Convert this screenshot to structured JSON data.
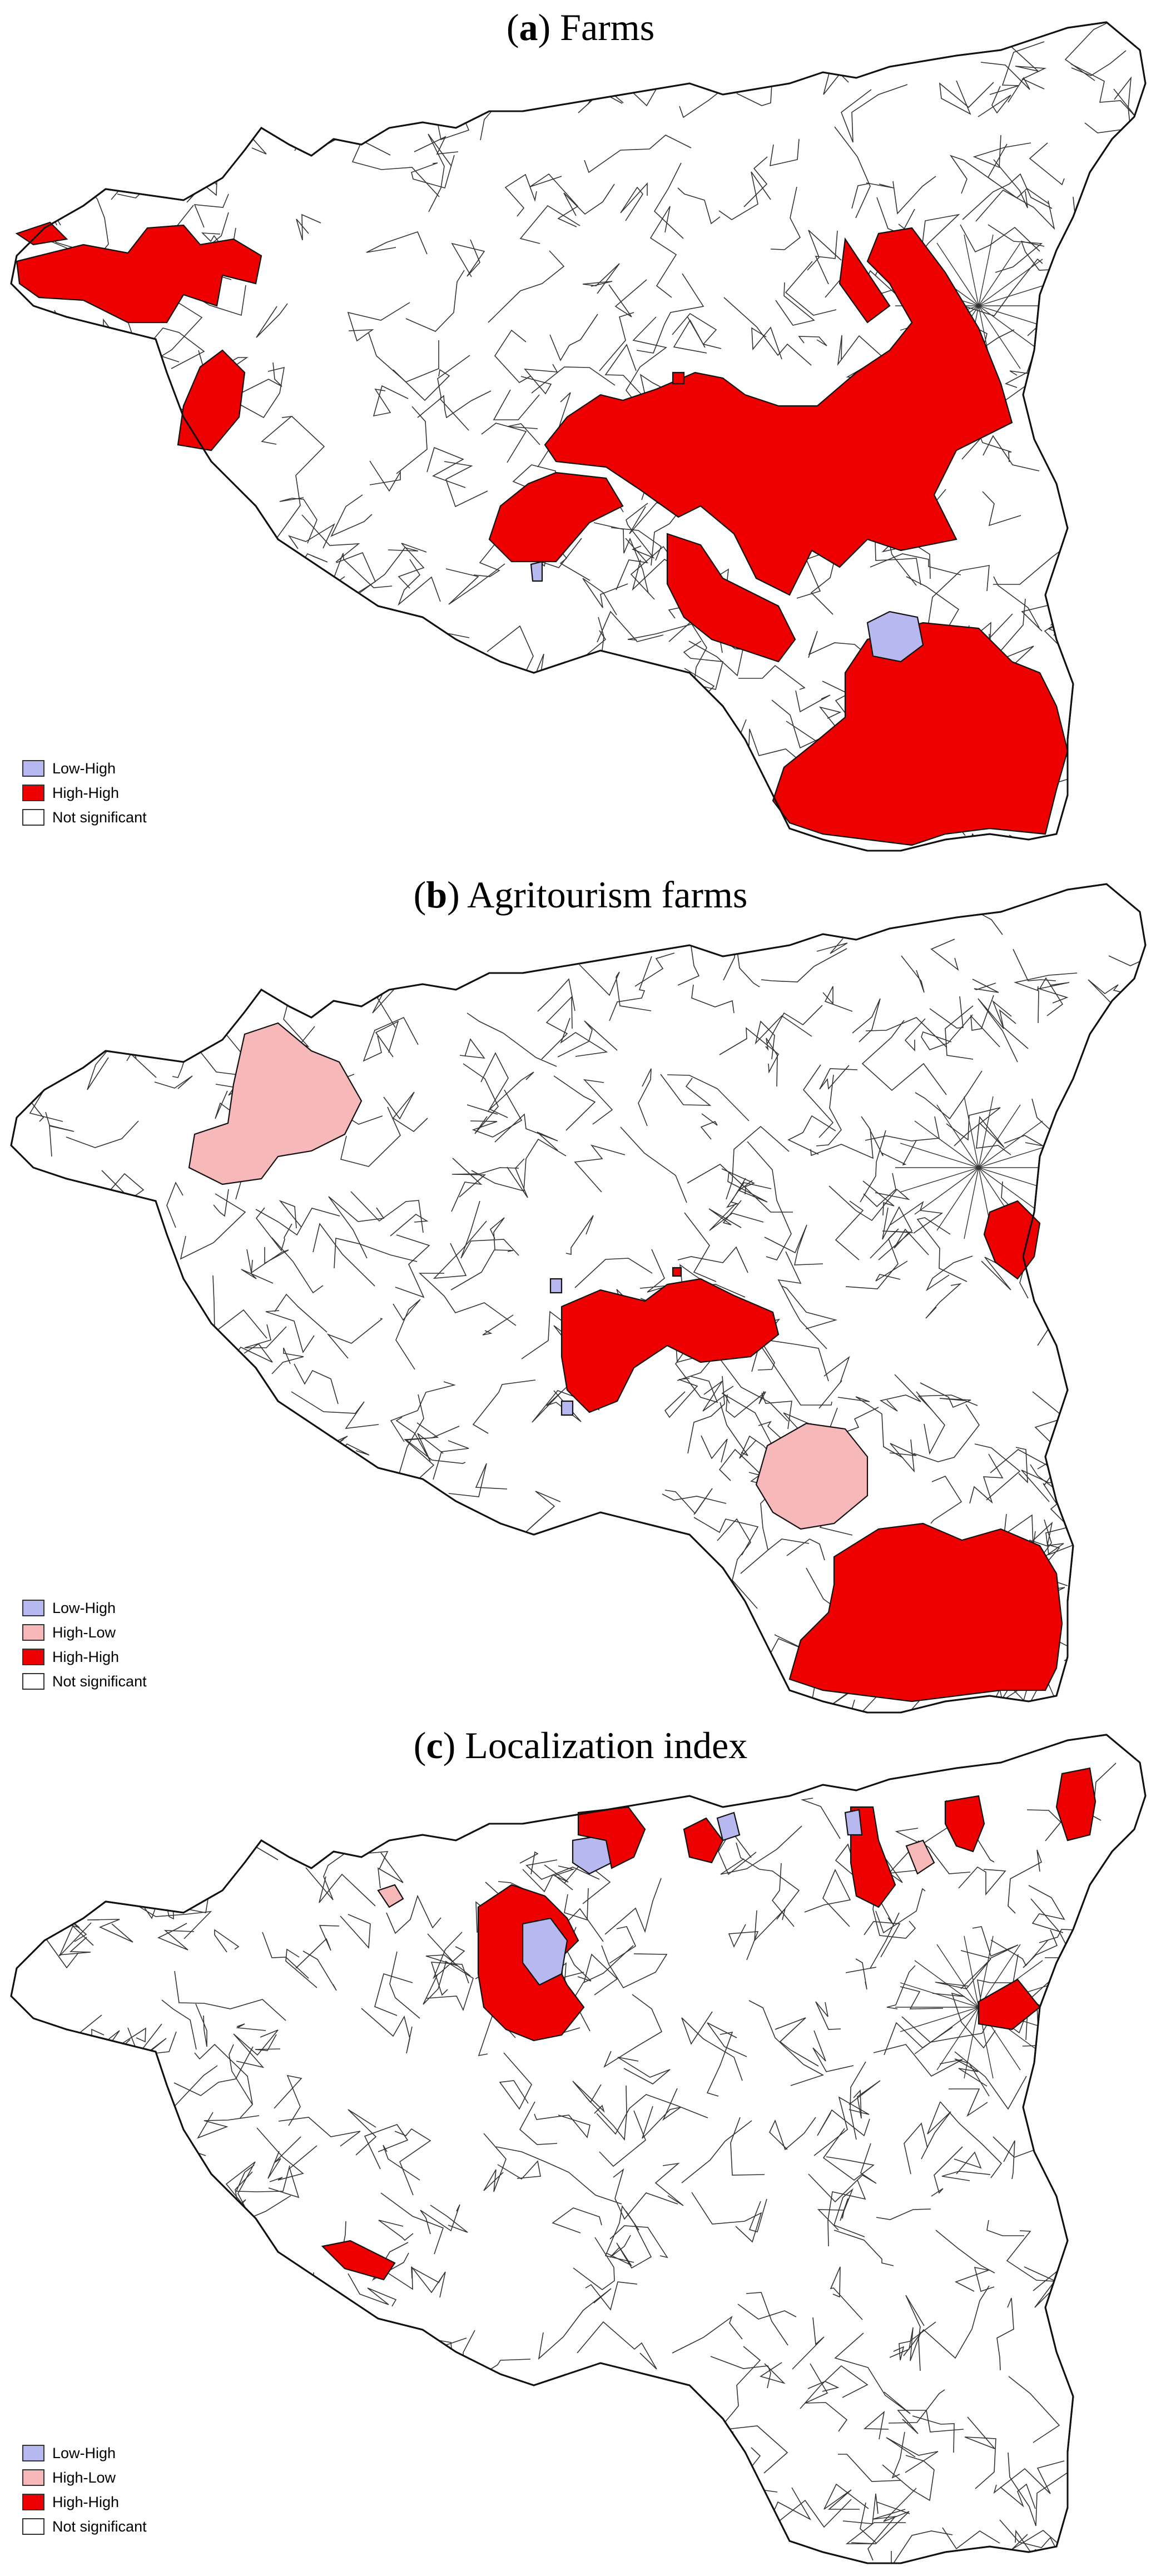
{
  "colors": {
    "low_high": "#b8b8f0",
    "high_low": "#f6b8b8",
    "high_high": "#ee0000",
    "not_significant": "#ffffff",
    "border": "#111111"
  },
  "panels": [
    {
      "letter": "a",
      "title": "Farms",
      "legend": [
        {
          "label": "Low-High",
          "color": "#b8b8f0"
        },
        {
          "label": "High-High",
          "color": "#ee0000"
        },
        {
          "label": "Not significant",
          "color": "#ffffff"
        }
      ]
    },
    {
      "letter": "b",
      "title": "Agritourism farms",
      "legend": [
        {
          "label": "Low-High",
          "color": "#b8b8f0"
        },
        {
          "label": "High-Low",
          "color": "#f6b8b8"
        },
        {
          "label": "High-High",
          "color": "#ee0000"
        },
        {
          "label": "Not significant",
          "color": "#ffffff"
        }
      ]
    },
    {
      "letter": "c",
      "title": "Localization index",
      "legend": [
        {
          "label": "Low-High",
          "color": "#b8b8f0"
        },
        {
          "label": "High-Low",
          "color": "#f6b8b8"
        },
        {
          "label": "High-High",
          "color": "#ee0000"
        },
        {
          "label": "Not significant",
          "color": "#ffffff"
        }
      ]
    }
  ]
}
